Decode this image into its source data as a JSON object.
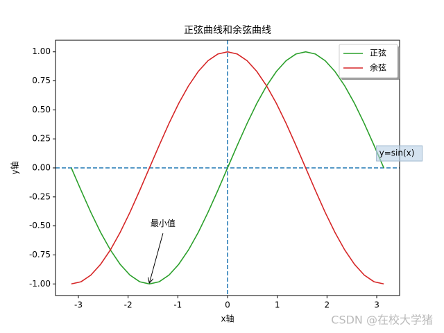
{
  "chart_data": {
    "type": "line",
    "title": "正弦曲线和余弦曲线",
    "xlabel": "x轴",
    "ylabel": "y轴",
    "x": [
      -3.142,
      -2.945,
      -2.749,
      -2.553,
      -2.356,
      -2.16,
      -1.963,
      -1.767,
      -1.571,
      -1.374,
      -1.178,
      -0.982,
      -0.785,
      -0.589,
      -0.393,
      -0.196,
      0,
      0.196,
      0.393,
      0.589,
      0.785,
      0.982,
      1.178,
      1.374,
      1.571,
      1.767,
      1.963,
      2.16,
      2.356,
      2.553,
      2.749,
      2.945,
      3.142
    ],
    "series": [
      {
        "name": "正弦",
        "color": "#2ca02c",
        "values": [
          0,
          -0.195,
          -0.383,
          -0.556,
          -0.707,
          -0.831,
          -0.924,
          -0.981,
          -1,
          -0.981,
          -0.924,
          -0.831,
          -0.707,
          -0.556,
          -0.383,
          -0.195,
          0,
          0.195,
          0.383,
          0.556,
          0.707,
          0.831,
          0.924,
          0.981,
          1,
          0.981,
          0.924,
          0.831,
          0.707,
          0.556,
          0.383,
          0.195,
          0
        ]
      },
      {
        "name": "余弦",
        "color": "#d62728",
        "values": [
          -1,
          -0.981,
          -0.924,
          -0.831,
          -0.707,
          -0.556,
          -0.383,
          -0.195,
          0,
          0.195,
          0.383,
          0.556,
          0.707,
          0.831,
          0.924,
          0.981,
          1,
          0.981,
          0.924,
          0.831,
          0.707,
          0.556,
          0.383,
          0.195,
          0,
          -0.195,
          -0.383,
          -0.556,
          -0.707,
          -0.831,
          -0.924,
          -0.981,
          -1
        ]
      }
    ],
    "xlim": [
      -3.46,
      3.46
    ],
    "ylim": [
      -1.1,
      1.1
    ],
    "xticks": [
      -3,
      -2,
      -1,
      0,
      1,
      2,
      3
    ],
    "yticks": [
      {
        "value": -1,
        "label": "-1.00"
      },
      {
        "value": -0.75,
        "label": "-0.75"
      },
      {
        "value": -0.5,
        "label": "-0.50"
      },
      {
        "value": -0.25,
        "label": "-0.25"
      },
      {
        "value": 0,
        "label": "0.00"
      },
      {
        "value": 0.25,
        "label": "0.25"
      },
      {
        "value": 0.5,
        "label": "0.50"
      },
      {
        "value": 0.75,
        "label": "0.75"
      },
      {
        "value": 1,
        "label": "1.00"
      }
    ],
    "hlines": [
      0
    ],
    "vlines": [
      0
    ],
    "reference_color": "#1f77b4",
    "legend": "upper right",
    "annotations": [
      {
        "text": "最小值",
        "x": -1.55,
        "y": -0.48,
        "arrow_to": [
          -1.57,
          -1
        ]
      },
      {
        "text": "y=sin(x)",
        "x": 3.05,
        "y": 0.125
      }
    ],
    "watermark": "CSDN @在校大学猪"
  }
}
